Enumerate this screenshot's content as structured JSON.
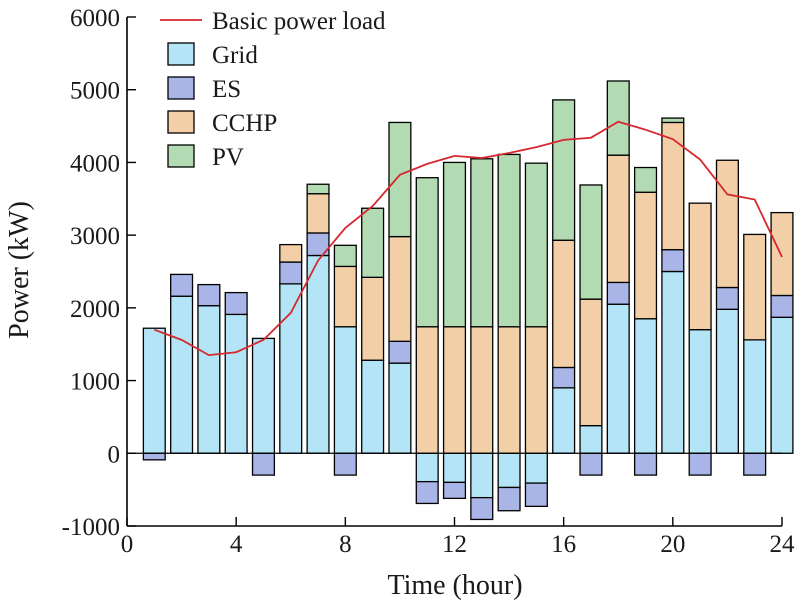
{
  "chart_data": {
    "type": "bar",
    "stacked": true,
    "xlabel": "Time (hour)",
    "ylabel": "Power (kW)",
    "xlim": [
      0,
      24
    ],
    "ylim": [
      -1000,
      6000
    ],
    "xticks": [
      0,
      4,
      8,
      12,
      16,
      20,
      24
    ],
    "yticks": [
      -1000,
      0,
      1000,
      2000,
      3000,
      4000,
      5000,
      6000
    ],
    "grid": false,
    "legend_position": "top-left",
    "x": [
      1,
      2,
      3,
      4,
      5,
      6,
      7,
      8,
      9,
      10,
      11,
      12,
      13,
      14,
      15,
      16,
      17,
      18,
      19,
      20,
      21,
      22,
      23,
      24
    ],
    "series": [
      {
        "name": "Grid",
        "color": "#b3e5f7",
        "values": [
          1720,
          2160,
          2030,
          1910,
          1580,
          2330,
          2720,
          1740,
          1280,
          1240,
          -390,
          -400,
          -610,
          -470,
          -410,
          900,
          380,
          2050,
          1850,
          2500,
          1700,
          1980,
          1560,
          1870
        ]
      },
      {
        "name": "ES",
        "color": "#a9b5e6",
        "values": [
          -90,
          300,
          290,
          300,
          -300,
          300,
          310,
          -300,
          0,
          300,
          -300,
          -220,
          -300,
          -320,
          -320,
          280,
          -300,
          300,
          -300,
          300,
          -300,
          300,
          -300,
          300
        ]
      },
      {
        "name": "CCHP",
        "color": "#f2cfa6",
        "values": [
          0,
          0,
          0,
          0,
          0,
          240,
          540,
          830,
          1140,
          1440,
          1740,
          1740,
          1740,
          1740,
          1740,
          1750,
          1740,
          1750,
          1740,
          1750,
          1740,
          1750,
          1450,
          1140
        ]
      },
      {
        "name": "PV",
        "color": "#b2dbb3",
        "values": [
          0,
          0,
          0,
          0,
          0,
          0,
          130,
          290,
          950,
          1570,
          2050,
          2260,
          2310,
          2370,
          2250,
          1930,
          1570,
          1020,
          340,
          60,
          0,
          0,
          0,
          0
        ]
      }
    ],
    "line": {
      "name": "Basic power load",
      "color": "#d6282e",
      "values": [
        1700,
        1560,
        1350,
        1390,
        1560,
        1930,
        2650,
        3100,
        3400,
        3830,
        3980,
        4090,
        4060,
        4130,
        4210,
        4310,
        4340,
        4560,
        4450,
        4320,
        4040,
        3560,
        3490,
        2700
      ]
    }
  }
}
